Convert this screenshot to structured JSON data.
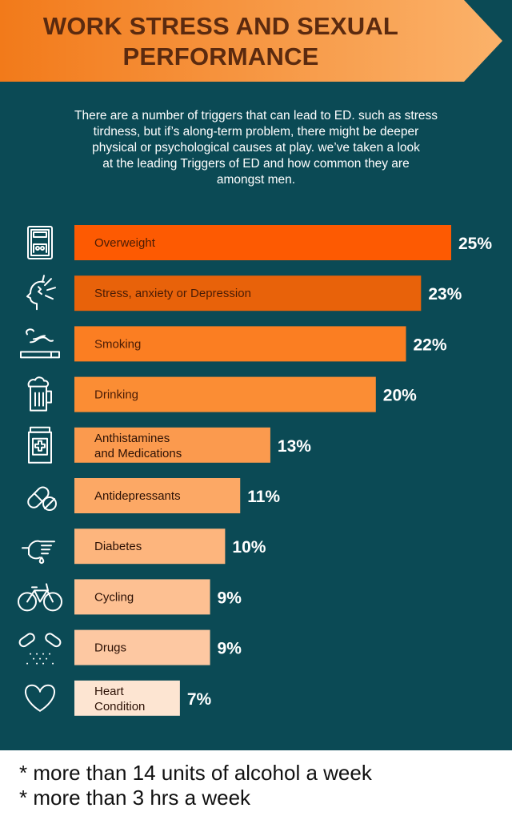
{
  "header": {
    "title_line1": "WORK STRESS AND SEXUAL",
    "title_line2": "PERFORMANCE",
    "intro_lines": [
      "There are a number of triggers that can lead to ED. such as stress",
      "tirdness, but if’s along-term problem, there might be deeper",
      "physical or psychological causes at play. we’ve taken a look",
      "at the leading Triggers of ED and how common they are",
      "amongst men."
    ]
  },
  "colors": {
    "background": "#0b4a55",
    "banner_start": "#f27a1a",
    "banner_end": "#fbb26a",
    "title_text": "#5b2a0f"
  },
  "chart_data": {
    "type": "bar",
    "orientation": "horizontal",
    "categories": [
      "Overweight",
      "Stress, anxiety or Depression",
      "Smoking",
      "Drinking",
      "Anthistamines and Medications",
      "Antidepressants",
      "Diabetes",
      "Cycling",
      "Drugs",
      "Heart Condition"
    ],
    "values": [
      25,
      23,
      22,
      20,
      13,
      11,
      10,
      9,
      9,
      7
    ],
    "value_labels": [
      "25%",
      "23%",
      "22%",
      "20%",
      "13%",
      "11%",
      "10%",
      "9%",
      "9%",
      "7%"
    ],
    "unit": "%",
    "bar_colors": [
      "#fd5a02",
      "#e8620a",
      "#fb7e22",
      "#fb8d34",
      "#fb9a4e",
      "#fca865",
      "#fdb57d",
      "#fdc092",
      "#fdc8a2",
      "#fde5d2"
    ],
    "label_colors": [
      "#4a1c05",
      "#4a1c05",
      "#4a1c05",
      "#4a1c05",
      "#2c1105",
      "#2c1105",
      "#2c1105",
      "#2c1105",
      "#2c1105",
      "#2c1105"
    ],
    "icons": [
      "scale-icon",
      "stressed-head-icon",
      "cigarette-icon",
      "beer-mug-icon",
      "medicine-jar-icon",
      "pill-capsule-icon",
      "finger-prick-icon",
      "bicycle-icon",
      "drugs-icon",
      "heart-icon"
    ],
    "xlim": [
      0,
      25
    ],
    "title": "",
    "xlabel": "",
    "ylabel": ""
  },
  "footnotes": [
    "* more than 14 units of alcohol a week",
    "* more than 3 hrs a week"
  ]
}
